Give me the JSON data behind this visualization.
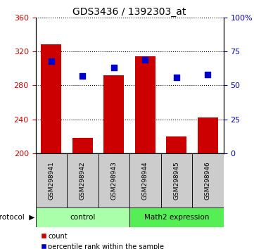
{
  "title": "GDS3436 / 1392303_at",
  "samples": [
    "GSM298941",
    "GSM298942",
    "GSM298943",
    "GSM298944",
    "GSM298945",
    "GSM298946"
  ],
  "counts": [
    328,
    218,
    292,
    314,
    220,
    242
  ],
  "percentile_ranks": [
    68,
    57,
    63,
    69,
    56,
    58
  ],
  "ylim_left": [
    200,
    360
  ],
  "yticks_left": [
    200,
    240,
    280,
    320,
    360
  ],
  "ylim_right": [
    0,
    100
  ],
  "yticks_right": [
    0,
    25,
    50,
    75,
    100
  ],
  "yticklabels_right": [
    "0",
    "25",
    "50",
    "75",
    "100%"
  ],
  "bar_color": "#cc0000",
  "dot_color": "#0000cc",
  "bar_width": 0.65,
  "group_colors": [
    "#aaffaa",
    "#55ee55"
  ],
  "groups": [
    {
      "label": "control",
      "indices": [
        0,
        1,
        2
      ]
    },
    {
      "label": "Math2 expression",
      "indices": [
        3,
        4,
        5
      ]
    }
  ],
  "protocol_label": "protocol",
  "legend_count_label": "count",
  "legend_pct_label": "percentile rank within the sample",
  "background_color": "#ffffff",
  "grid_color": "#000000",
  "left_tick_color": "#cc0000",
  "right_tick_color": "#0000cc"
}
